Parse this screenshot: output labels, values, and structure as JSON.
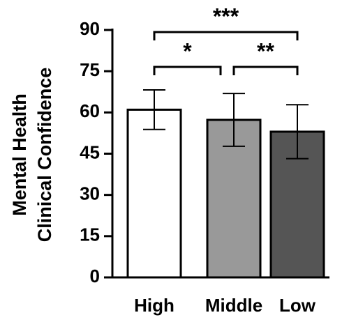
{
  "chart_data": {
    "type": "bar",
    "ylabel": [
      "Mental Health",
      "Clinical Confidence"
    ],
    "categories": [
      "High",
      "Middle",
      "Low"
    ],
    "values": [
      61,
      57.3,
      53
    ],
    "errors": [
      7.2,
      9.6,
      9.8
    ],
    "colors": [
      "#ffffff",
      "#999999",
      "#555555"
    ],
    "ylim": [
      0,
      90
    ],
    "yticks": [
      0,
      15,
      30,
      45,
      60,
      75,
      90
    ],
    "annotations": [
      "***",
      "*",
      "**"
    ]
  }
}
